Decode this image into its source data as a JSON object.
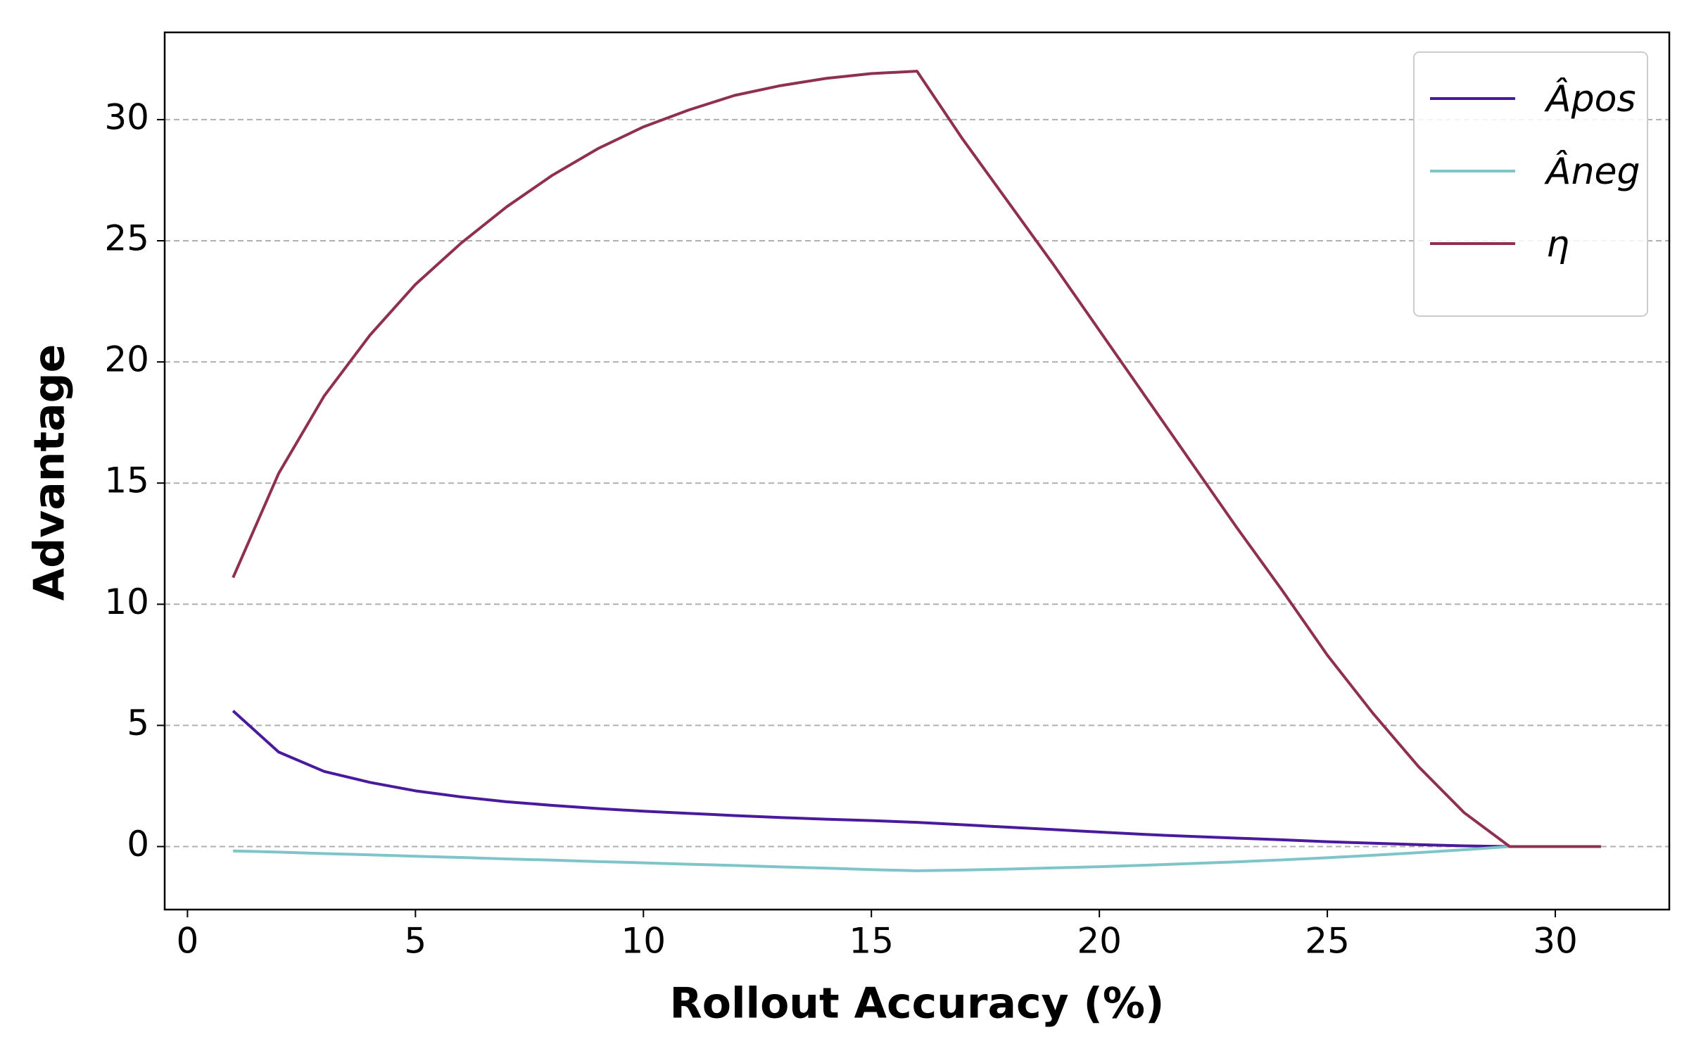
{
  "chart_data": {
    "type": "line",
    "x_label": "Rollout Accuracy (%)",
    "y_label": "Advantage",
    "x": [
      1,
      2,
      3,
      4,
      5,
      6,
      7,
      8,
      9,
      10,
      11,
      12,
      13,
      14,
      15,
      16,
      17,
      18,
      19,
      20,
      21,
      22,
      23,
      24,
      25,
      26,
      27,
      28,
      29,
      30,
      31
    ],
    "series": [
      {
        "name": "Âpos",
        "color": "#4a1a9c",
        "values": [
          5.6,
          3.9,
          3.1,
          2.65,
          2.3,
          2.05,
          1.85,
          1.7,
          1.57,
          1.46,
          1.37,
          1.28,
          1.2,
          1.13,
          1.07,
          1.0,
          0.9,
          0.8,
          0.7,
          0.6,
          0.5,
          0.42,
          0.35,
          0.28,
          0.2,
          0.14,
          0.08,
          0.03,
          0,
          0,
          0
        ]
      },
      {
        "name": "Âneg",
        "color": "#7ec4c8",
        "values": [
          -0.18,
          -0.23,
          -0.29,
          -0.34,
          -0.4,
          -0.45,
          -0.51,
          -0.56,
          -0.62,
          -0.67,
          -0.73,
          -0.78,
          -0.84,
          -0.89,
          -0.95,
          -1.0,
          -0.97,
          -0.93,
          -0.88,
          -0.83,
          -0.77,
          -0.7,
          -0.63,
          -0.55,
          -0.46,
          -0.36,
          -0.25,
          -0.13,
          0,
          0,
          0
        ]
      },
      {
        "name": "η",
        "color": "#8f3050",
        "values": [
          11.1,
          15.4,
          18.6,
          21.1,
          23.2,
          24.9,
          26.4,
          27.7,
          28.8,
          29.7,
          30.4,
          31.0,
          31.4,
          31.7,
          31.9,
          32.0,
          29.2,
          26.6,
          24.0,
          21.3,
          18.6,
          15.9,
          13.2,
          10.6,
          7.9,
          5.5,
          3.3,
          1.4,
          0,
          0,
          0
        ]
      }
    ],
    "xlim": [
      -0.5,
      32.5
    ],
    "ylim": [
      -2.6,
      33.6
    ],
    "xticks": [
      0,
      5,
      10,
      15,
      20,
      25,
      30
    ],
    "yticks": [
      0,
      5,
      10,
      15,
      20,
      25,
      30
    ],
    "grid": true,
    "legend_position": "upper right"
  }
}
